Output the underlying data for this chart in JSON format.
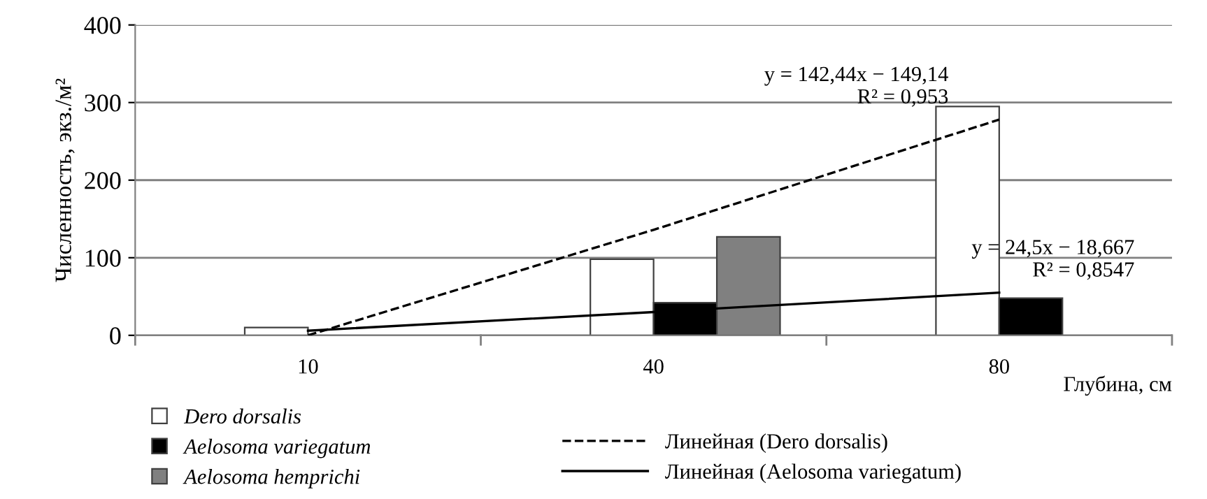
{
  "chart_data": {
    "type": "bar",
    "ylabel": "Численность, экз./м²",
    "xlabel": "Глубина, см",
    "categories": [
      "10",
      "40",
      "80"
    ],
    "series": [
      {
        "name": "Dero dorsalis",
        "color": "#ffffff",
        "values": [
          10,
          98,
          295
        ]
      },
      {
        "name": "Aelosoma variegatum",
        "color": "#000000",
        "values": [
          null,
          42,
          48
        ]
      },
      {
        "name": "Aelosoma hemprichi",
        "color": "#808080",
        "values": [
          null,
          127,
          null
        ]
      },
      {
        "name": "Линейная (Dero dorsalis)",
        "type": "line",
        "line_style": "dashed",
        "color": "#000000",
        "x": [
          "10",
          "40",
          "80"
        ],
        "values": [
          0,
          136,
          278
        ]
      },
      {
        "name": "Линейная (Aelosoma variegatum)",
        "type": "line",
        "line_style": "solid",
        "color": "#000000",
        "x": [
          "10",
          "40",
          "80"
        ],
        "values": [
          6,
          30,
          55
        ]
      }
    ],
    "annotations": [
      {
        "text": "y = 142,44x − 149,14\nR² = 0,953",
        "x": "80",
        "y": 278
      },
      {
        "text": "y = 24,5x − 18,667\nR² = 0,8547",
        "x": "80",
        "y": 55
      }
    ],
    "ylim": [
      0,
      400
    ],
    "yticks": [
      0,
      100,
      200,
      300,
      400
    ],
    "grid": "y",
    "legend": "bottom"
  }
}
